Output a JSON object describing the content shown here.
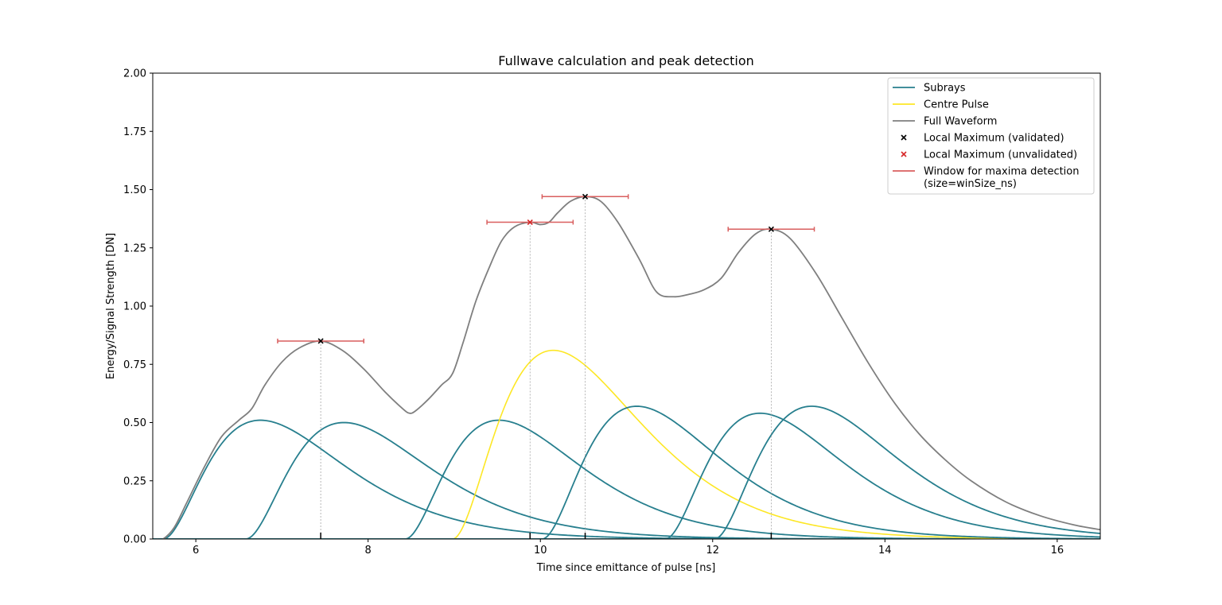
{
  "chart_data": {
    "type": "line",
    "title": "Fullwave calculation and peak detection",
    "xlabel": "Time since emittance of pulse [ns]",
    "ylabel": "Energy/Signal Strength [DN]",
    "xlim": [
      5.5,
      16.5
    ],
    "ylim": [
      0.0,
      2.0
    ],
    "xticks": [
      6,
      8,
      10,
      12,
      14,
      16
    ],
    "yticks": [
      "0.00",
      "0.25",
      "0.50",
      "0.75",
      "1.00",
      "1.25",
      "1.50",
      "1.75",
      "2.00"
    ],
    "grid": false,
    "legend_position": "top-right",
    "colors": {
      "subrays": "#277f8e",
      "centre_pulse": "#fde725",
      "full_waveform": "#7f7f7f",
      "validated": "#000000",
      "unvalidated": "#d62728",
      "window": "#d95f5f"
    },
    "legend": [
      {
        "label": "Subrays",
        "kind": "line",
        "color": "#277f8e"
      },
      {
        "label": "Centre Pulse",
        "kind": "line",
        "color": "#fde725"
      },
      {
        "label": "Full Waveform",
        "kind": "line",
        "color": "#7f7f7f"
      },
      {
        "label": "Local Maximum (validated)",
        "kind": "marker",
        "color": "#000000"
      },
      {
        "label": "Local Maximum (unvalidated)",
        "kind": "marker",
        "color": "#d62728"
      },
      {
        "label": "Window for maxima detection",
        "label2": "(size=winSize_ns)",
        "kind": "line",
        "color": "#d95f5f"
      }
    ],
    "series": [
      {
        "name": "Subrays",
        "kind": "subray",
        "onset": 5.62,
        "peak_x": 6.75,
        "peak_y": 0.51
      },
      {
        "name": "Subrays",
        "kind": "subray",
        "onset": 6.58,
        "peak_x": 7.72,
        "peak_y": 0.5
      },
      {
        "name": "Subrays",
        "kind": "subray",
        "onset": 8.43,
        "peak_x": 9.52,
        "peak_y": 0.51
      },
      {
        "name": "Centre Pulse",
        "kind": "centre",
        "onset": 8.98,
        "peak_x": 10.15,
        "peak_y": 0.81
      },
      {
        "name": "Subrays",
        "kind": "subray",
        "onset": 10.02,
        "peak_x": 11.12,
        "peak_y": 0.57
      },
      {
        "name": "Subrays",
        "kind": "subray",
        "onset": 11.45,
        "peak_x": 12.55,
        "peak_y": 0.54
      },
      {
        "name": "Subrays",
        "kind": "subray",
        "onset": 12.02,
        "peak_x": 13.15,
        "peak_y": 0.57
      }
    ],
    "full_waveform": {
      "x": [
        5.55,
        5.62,
        5.75,
        5.9,
        6.1,
        6.3,
        6.5,
        6.65,
        6.8,
        7.0,
        7.2,
        7.45,
        7.7,
        7.95,
        8.2,
        8.4,
        8.48,
        8.55,
        8.7,
        8.85,
        8.98,
        9.1,
        9.25,
        9.4,
        9.55,
        9.7,
        9.88,
        10.0,
        10.1,
        10.2,
        10.35,
        10.52,
        10.7,
        10.9,
        11.15,
        11.35,
        11.55,
        11.72,
        11.9,
        12.1,
        12.3,
        12.5,
        12.68,
        12.9,
        13.2,
        13.5,
        13.8,
        14.1,
        14.4,
        14.7,
        15.0,
        15.4,
        15.8,
        16.2,
        16.5
      ],
      "y": [
        0.0,
        0.0,
        0.05,
        0.16,
        0.31,
        0.44,
        0.51,
        0.56,
        0.66,
        0.76,
        0.82,
        0.85,
        0.81,
        0.73,
        0.63,
        0.56,
        0.54,
        0.55,
        0.6,
        0.66,
        0.71,
        0.84,
        1.02,
        1.16,
        1.28,
        1.34,
        1.36,
        1.35,
        1.36,
        1.4,
        1.45,
        1.47,
        1.45,
        1.36,
        1.2,
        1.06,
        1.04,
        1.05,
        1.07,
        1.12,
        1.23,
        1.31,
        1.33,
        1.29,
        1.14,
        0.95,
        0.76,
        0.59,
        0.45,
        0.34,
        0.25,
        0.16,
        0.1,
        0.06,
        0.04
      ]
    },
    "local_maxima": [
      {
        "x": 7.45,
        "y": 0.85,
        "validated": true,
        "window": [
          6.95,
          7.95
        ]
      },
      {
        "x": 9.88,
        "y": 1.36,
        "validated": false,
        "window": [
          9.38,
          10.38
        ]
      },
      {
        "x": 10.52,
        "y": 1.47,
        "validated": true,
        "window": [
          10.02,
          11.02
        ]
      },
      {
        "x": 12.68,
        "y": 1.33,
        "validated": true,
        "window": [
          12.18,
          13.18
        ]
      }
    ]
  }
}
